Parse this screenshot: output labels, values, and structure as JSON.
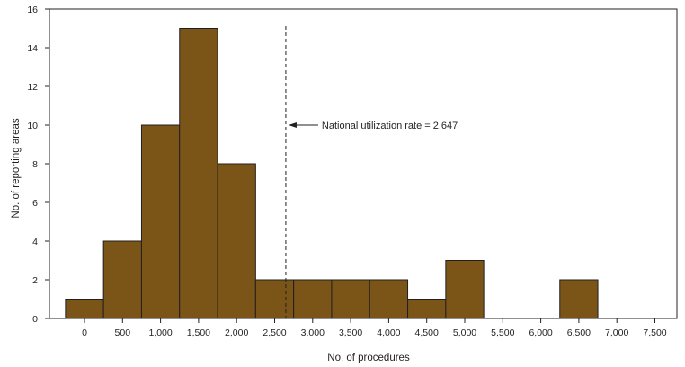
{
  "chart_data": {
    "type": "bar",
    "subtype": "histogram",
    "title": "",
    "xlabel": "No. of procedures",
    "ylabel": "No. of reporting areas",
    "categories": [
      "0",
      "500",
      "1,000",
      "1,500",
      "2,000",
      "2,500",
      "3,000",
      "3,500",
      "4,000",
      "4,500",
      "5,000",
      "5,500",
      "6,000",
      "6,500",
      "7,000",
      "7,500"
    ],
    "x": [
      0,
      500,
      1000,
      1500,
      2000,
      2500,
      3000,
      3500,
      4000,
      4500,
      5000,
      5500,
      6000,
      6500,
      7000,
      7500
    ],
    "values": [
      1,
      4,
      10,
      15,
      8,
      2,
      2,
      2,
      2,
      1,
      3,
      0,
      0,
      2,
      0,
      0
    ],
    "bin_width": 500,
    "ylim": [
      0,
      16
    ],
    "yticks": [
      0,
      2,
      4,
      6,
      8,
      10,
      12,
      14,
      16
    ],
    "xlim": [
      -500,
      7800
    ],
    "grid": false,
    "legend": null,
    "bar_color": "#7b5518",
    "reference_line": {
      "x": 2647,
      "style": "dashed",
      "label": "National utilization rate = 2,647"
    }
  }
}
